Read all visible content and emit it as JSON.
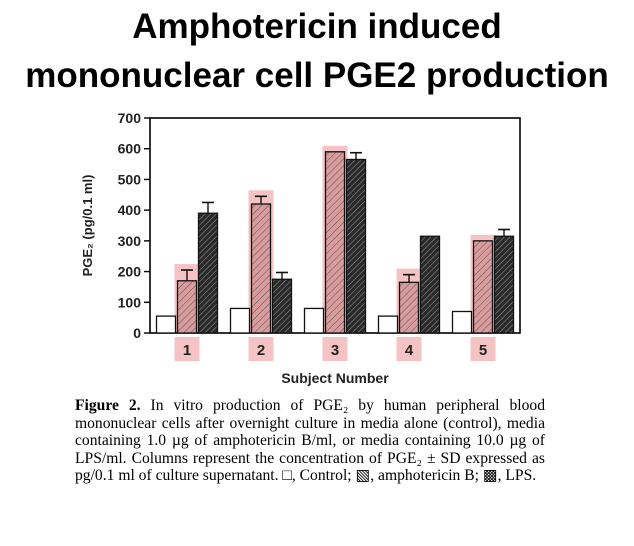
{
  "title_lines": [
    "Amphotericin induced",
    "mononuclear cell PGE2 production"
  ],
  "chart_data": {
    "type": "bar",
    "categories": [
      "1",
      "2",
      "3",
      "4",
      "5"
    ],
    "series": [
      {
        "name": "Control",
        "values": [
          55,
          80,
          80,
          55,
          70
        ],
        "errors": [
          0,
          0,
          0,
          0,
          0
        ],
        "fill": "#ffffff"
      },
      {
        "name": "amphotericin B",
        "values": [
          170,
          420,
          590,
          165,
          300
        ],
        "errors": [
          35,
          25,
          0,
          25,
          0
        ],
        "fill": "#d99b9b"
      },
      {
        "name": "LPS",
        "values": [
          390,
          175,
          565,
          315,
          315
        ],
        "errors": [
          35,
          22,
          22,
          0,
          22
        ],
        "fill": "#2f2f2f"
      }
    ],
    "xlabel": "Subject Number",
    "ylabel": "PGE₂ (pg/0.1 ml)",
    "ylim": [
      0,
      700
    ],
    "yticks": [
      "0",
      "100",
      "200",
      "300",
      "400",
      "500",
      "600",
      "700"
    ],
    "highlight_color": "#f3b8b8"
  },
  "caption": {
    "lead": "Figure 2.",
    "text": "In vitro production of PGE₂ by human peripheral blood mononuclear cells after overnight culture in media alone (control), media containing 1.0 µg of amphotericin B/ml, or media containing 10.0 µg of LPS/ml. Columns represent the concentration of PGE₂ ± SD expressed as pg/0.1 ml of culture supernatant. □, Control; ▧, amphotericin B; ▩, LPS."
  }
}
